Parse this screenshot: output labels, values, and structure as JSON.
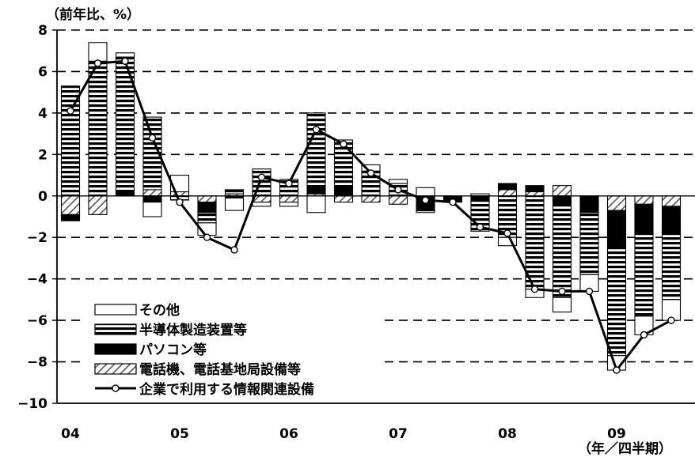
{
  "chart_data": {
    "type": "bar",
    "stacked": true,
    "ylabel": "（前年比、%）",
    "xlabel": "（年／四半期）",
    "ylim": [
      -10,
      8
    ],
    "yticks": [
      -10,
      -8,
      -6,
      -4,
      -2,
      0,
      2,
      4,
      6,
      8
    ],
    "ytick_labels": [
      "−10",
      "−8",
      "−6",
      "−4",
      "−2",
      "0",
      "2",
      "4",
      "6",
      "8"
    ],
    "gridlines": "dashed-horizontal",
    "legend_position": "bottom-left",
    "x_year_labels": [
      {
        "label": "04",
        "index": 0
      },
      {
        "label": "05",
        "index": 4
      },
      {
        "label": "06",
        "index": 8
      },
      {
        "label": "07",
        "index": 12
      },
      {
        "label": "08",
        "index": 16
      },
      {
        "label": "09",
        "index": 20
      }
    ],
    "categories": [
      "04Q1",
      "04Q2",
      "04Q3",
      "04Q4",
      "05Q1",
      "05Q2",
      "05Q3",
      "05Q4",
      "06Q1",
      "06Q2",
      "06Q3",
      "06Q4",
      "07Q1",
      "07Q2",
      "07Q3",
      "07Q4",
      "08Q1",
      "08Q2",
      "08Q3",
      "08Q4",
      "09Q1",
      "09Q2",
      "09Q3"
    ],
    "series": [
      {
        "name": "電話機、電話基地局設備等",
        "pattern": "hatch",
        "values": [
          -0.9,
          -0.9,
          0.0,
          0.3,
          0.2,
          -0.3,
          0.1,
          -0.3,
          -0.3,
          0.1,
          -0.3,
          -0.3,
          -0.4,
          0.0,
          0.0,
          0.0,
          0.3,
          0.2,
          0.5,
          0.0,
          -0.7,
          -0.4,
          -0.5
        ]
      },
      {
        "name": "パソコン等",
        "pattern": "solid",
        "values": [
          -0.3,
          0.0,
          0.2,
          -0.3,
          0.0,
          -0.5,
          -0.1,
          0.0,
          0.0,
          0.4,
          0.5,
          0.0,
          0.0,
          -0.6,
          -0.3,
          -0.2,
          0.3,
          0.3,
          -0.4,
          -0.8,
          -1.8,
          -1.4,
          -1.3
        ]
      },
      {
        "name": "半導体製造装置等",
        "pattern": "stripes",
        "values": [
          5.3,
          6.5,
          6.5,
          3.5,
          -0.2,
          -0.5,
          0.2,
          1.3,
          0.8,
          3.5,
          2.2,
          1.2,
          0.6,
          -0.2,
          0.0,
          -1.5,
          -2.0,
          -4.5,
          -4.5,
          -3.0,
          -5.2,
          -4.0,
          -3.2
        ]
      },
      {
        "name": "その他",
        "pattern": "empty",
        "values": [
          0.0,
          0.9,
          0.2,
          -0.7,
          0.8,
          -0.6,
          -0.6,
          -0.2,
          -0.2,
          -0.8,
          0.0,
          0.3,
          0.2,
          0.4,
          0.0,
          0.1,
          -0.4,
          -0.4,
          -0.7,
          -0.8,
          -0.7,
          -0.9,
          -1.0
        ]
      },
      {
        "name": "企業で利用する情報関連設備",
        "type": "line",
        "values": [
          4.1,
          6.4,
          6.5,
          2.8,
          -0.3,
          -2.0,
          -2.6,
          0.9,
          0.6,
          3.2,
          2.5,
          1.1,
          0.3,
          -0.2,
          -0.3,
          -1.5,
          -1.8,
          -4.5,
          -4.6,
          -4.6,
          -8.4,
          -6.7,
          -6.0
        ]
      }
    ],
    "legend_order": [
      "その他",
      "半導体製造装置等",
      "パソコン等",
      "電話機、電話基地局設備等",
      "企業で利用する情報関連設備"
    ]
  }
}
